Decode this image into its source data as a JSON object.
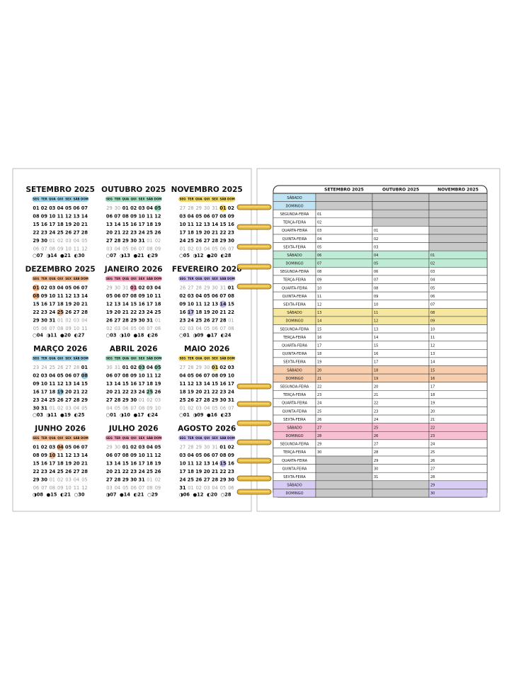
{
  "weekdays": [
    "SEG",
    "TER",
    "QUA",
    "QUI",
    "SEX",
    "SÁB",
    "DOM"
  ],
  "calendars": [
    {
      "title": "SETEMBRO 2025",
      "color": "#9fd3ea",
      "holidays": [],
      "weeks": [
        [
          "01",
          "02",
          "03",
          "04",
          "05",
          "06",
          "07"
        ],
        [
          "08",
          "09",
          "10",
          "11",
          "12",
          "13",
          "14"
        ],
        [
          "15",
          "16",
          "17",
          "18",
          "19",
          "20",
          "21"
        ],
        [
          "22",
          "23",
          "24",
          "25",
          "26",
          "27",
          "28"
        ],
        [
          "29",
          "30",
          "01",
          "02",
          "03",
          "04",
          "05"
        ],
        [
          "06",
          "07",
          "08",
          "09",
          "10",
          "11",
          "12"
        ]
      ],
      "moons": [
        "○07",
        "◑14",
        "●21",
        "◐30"
      ]
    },
    {
      "title": "OUTUBRO 2025",
      "color": "#a6dfc4",
      "holidays": [
        "05"
      ],
      "weeks": [
        [
          "29",
          "30",
          "01",
          "02",
          "03",
          "04",
          "05"
        ],
        [
          "06",
          "07",
          "08",
          "09",
          "10",
          "11",
          "12"
        ],
        [
          "13",
          "14",
          "15",
          "16",
          "17",
          "18",
          "19"
        ],
        [
          "20",
          "21",
          "22",
          "23",
          "24",
          "25",
          "26"
        ],
        [
          "27",
          "28",
          "29",
          "30",
          "31",
          "01",
          "02"
        ],
        [
          "03",
          "04",
          "05",
          "06",
          "07",
          "08",
          "09"
        ]
      ],
      "moons": [
        "○07",
        "◑13",
        "●21",
        "◐29"
      ]
    },
    {
      "title": "NOVEMBRO 2025",
      "color": "#f2da6a",
      "holidays": [
        "01"
      ],
      "weeks": [
        [
          "27",
          "28",
          "29",
          "30",
          "31",
          "01",
          "02"
        ],
        [
          "03",
          "04",
          "05",
          "06",
          "07",
          "08",
          "09"
        ],
        [
          "10",
          "11",
          "12",
          "13",
          "14",
          "15",
          "16"
        ],
        [
          "17",
          "18",
          "19",
          "20",
          "21",
          "22",
          "23"
        ],
        [
          "24",
          "25",
          "26",
          "27",
          "28",
          "29",
          "30"
        ],
        [
          "01",
          "02",
          "03",
          "04",
          "05",
          "06",
          "07"
        ]
      ],
      "moons": [
        "○05",
        "◑12",
        "●20",
        "◐28"
      ]
    },
    {
      "title": "DEZEMBRO 2025",
      "color": "#f3b98c",
      "holidays": [
        "01",
        "08",
        "25"
      ],
      "weeks": [
        [
          "01",
          "02",
          "03",
          "04",
          "05",
          "06",
          "07"
        ],
        [
          "08",
          "09",
          "10",
          "11",
          "12",
          "13",
          "14"
        ],
        [
          "15",
          "16",
          "17",
          "18",
          "19",
          "20",
          "21"
        ],
        [
          "22",
          "23",
          "24",
          "25",
          "26",
          "27",
          "28"
        ],
        [
          "29",
          "30",
          "31",
          "01",
          "02",
          "03",
          "04"
        ],
        [
          "05",
          "06",
          "07",
          "08",
          "09",
          "10",
          "11"
        ]
      ],
      "moons": [
        "○04",
        "◑11",
        "●20",
        "◐27"
      ]
    },
    {
      "title": "JANEIRO 2026",
      "color": "#f3a6bf",
      "holidays": [
        "01"
      ],
      "weeks": [
        [
          "29",
          "30",
          "31",
          "01",
          "02",
          "03",
          "04"
        ],
        [
          "05",
          "06",
          "07",
          "08",
          "09",
          "10",
          "11"
        ],
        [
          "12",
          "13",
          "14",
          "15",
          "16",
          "17",
          "18"
        ],
        [
          "19",
          "20",
          "21",
          "22",
          "23",
          "24",
          "25"
        ],
        [
          "26",
          "27",
          "28",
          "29",
          "30",
          "31",
          "01"
        ],
        [
          "02",
          "03",
          "04",
          "05",
          "06",
          "07",
          "08"
        ]
      ],
      "moons": [
        "○03",
        "◑10",
        "●18",
        "◐26"
      ]
    },
    {
      "title": "FEVEREIRO 2026",
      "color": "#c8b9f0",
      "holidays": [
        "14",
        "17"
      ],
      "weeks": [
        [
          "26",
          "27",
          "28",
          "29",
          "30",
          "31",
          "01"
        ],
        [
          "02",
          "03",
          "04",
          "05",
          "06",
          "07",
          "08"
        ],
        [
          "09",
          "10",
          "11",
          "12",
          "13",
          "14",
          "15"
        ],
        [
          "16",
          "17",
          "18",
          "19",
          "20",
          "21",
          "22"
        ],
        [
          "23",
          "24",
          "25",
          "26",
          "27",
          "28",
          "01"
        ],
        [
          "02",
          "03",
          "04",
          "05",
          "06",
          "07",
          "08"
        ]
      ],
      "moons": [
        "○01",
        "◑09",
        "●17",
        "◐24"
      ]
    },
    {
      "title": "MARÇO 2026",
      "color": "#9fd3ea",
      "holidays": [
        "08",
        "19"
      ],
      "weeks": [
        [
          "23",
          "24",
          "25",
          "26",
          "27",
          "28",
          "01"
        ],
        [
          "02",
          "03",
          "04",
          "05",
          "06",
          "07",
          "08"
        ],
        [
          "09",
          "10",
          "11",
          "12",
          "13",
          "14",
          "15"
        ],
        [
          "16",
          "17",
          "18",
          "19",
          "20",
          "21",
          "22"
        ],
        [
          "23",
          "24",
          "25",
          "26",
          "27",
          "28",
          "29"
        ],
        [
          "30",
          "31",
          "01",
          "02",
          "03",
          "04",
          "05"
        ]
      ],
      "moons": [
        "○03",
        "◑11",
        "●19",
        "◐25"
      ]
    },
    {
      "title": "ABRIL 2026",
      "color": "#a6dfc4",
      "holidays": [
        "03",
        "05",
        "25"
      ],
      "weeks": [
        [
          "30",
          "31",
          "01",
          "02",
          "03",
          "04",
          "05"
        ],
        [
          "06",
          "07",
          "08",
          "09",
          "10",
          "11",
          "12"
        ],
        [
          "13",
          "14",
          "15",
          "16",
          "17",
          "18",
          "19"
        ],
        [
          "20",
          "21",
          "22",
          "23",
          "24",
          "25",
          "26"
        ],
        [
          "27",
          "28",
          "29",
          "30",
          "01",
          "02",
          "03"
        ],
        [
          "04",
          "05",
          "06",
          "07",
          "08",
          "09",
          "10"
        ]
      ],
      "moons": [
        "○01",
        "◑10",
        "●17",
        "◐24"
      ]
    },
    {
      "title": "MAIO 2026",
      "color": "#f2da6a",
      "holidays": [
        "01"
      ],
      "weeks": [
        [
          "27",
          "28",
          "29",
          "30",
          "01",
          "02",
          "03"
        ],
        [
          "04",
          "05",
          "06",
          "07",
          "08",
          "09",
          "10"
        ],
        [
          "11",
          "12",
          "13",
          "14",
          "15",
          "16",
          "17"
        ],
        [
          "18",
          "19",
          "20",
          "21",
          "22",
          "23",
          "24"
        ],
        [
          "25",
          "26",
          "27",
          "28",
          "29",
          "30",
          "31"
        ],
        [
          "01",
          "02",
          "03",
          "04",
          "05",
          "06",
          "07"
        ]
      ],
      "moons": [
        "○01",
        "◑09",
        "●16",
        "◐23"
      ]
    },
    {
      "title": "JUNHO 2026",
      "color": "#f3b98c",
      "holidays": [
        "04",
        "10"
      ],
      "weeks": [
        [
          "01",
          "02",
          "03",
          "04",
          "05",
          "06",
          "07"
        ],
        [
          "08",
          "09",
          "10",
          "11",
          "12",
          "13",
          "14"
        ],
        [
          "15",
          "16",
          "17",
          "18",
          "19",
          "20",
          "21"
        ],
        [
          "22",
          "23",
          "24",
          "25",
          "26",
          "27",
          "28"
        ],
        [
          "29",
          "30",
          "01",
          "02",
          "03",
          "04",
          "05"
        ],
        [
          "06",
          "07",
          "08",
          "09",
          "10",
          "11",
          "12"
        ]
      ],
      "moons": [
        "◑08",
        "●15",
        "◐21",
        "○30"
      ]
    },
    {
      "title": "JULHO 2026",
      "color": "#f3a6bf",
      "holidays": [],
      "weeks": [
        [
          "29",
          "30",
          "01",
          "02",
          "03",
          "04",
          "05"
        ],
        [
          "06",
          "07",
          "08",
          "09",
          "10",
          "11",
          "12"
        ],
        [
          "13",
          "14",
          "15",
          "16",
          "17",
          "18",
          "19"
        ],
        [
          "20",
          "21",
          "22",
          "23",
          "24",
          "25",
          "26"
        ],
        [
          "27",
          "28",
          "29",
          "30",
          "31",
          "01",
          "02"
        ],
        [
          "03",
          "04",
          "05",
          "06",
          "07",
          "08",
          "09"
        ]
      ],
      "moons": [
        "◑07",
        "●14",
        "◐21",
        "○29"
      ]
    },
    {
      "title": "AGOSTO 2026",
      "color": "#c8b9f0",
      "holidays": [
        "15"
      ],
      "weeks": [
        [
          "27",
          "28",
          "29",
          "30",
          "31",
          "01",
          "02"
        ],
        [
          "03",
          "04",
          "05",
          "06",
          "07",
          "08",
          "09"
        ],
        [
          "10",
          "11",
          "12",
          "13",
          "14",
          "15",
          "16"
        ],
        [
          "17",
          "18",
          "19",
          "20",
          "21",
          "22",
          "23"
        ],
        [
          "24",
          "25",
          "26",
          "27",
          "28",
          "29",
          "30"
        ],
        [
          "31",
          "01",
          "02",
          "03",
          "04",
          "05",
          "06"
        ]
      ],
      "moons": [
        "◑06",
        "●12",
        "◐20",
        "○28"
      ]
    }
  ],
  "table": {
    "headers": [
      "SETEMBRO 2025",
      "OUTUBRO 2025",
      "NOVEMBRO 2025"
    ],
    "weekend_colors": [
      "#bfe3f2",
      "#bfebd6",
      "#f6e7a0",
      "#f8cfae",
      "#f6bfd2",
      "#d8ccf5"
    ],
    "rows": [
      [
        "SÁBADO",
        null,
        null,
        null
      ],
      [
        "DOMINGO",
        null,
        null,
        null
      ],
      [
        "SEGUNDA-FEIRA",
        "01",
        null,
        null
      ],
      [
        "TERÇA-FEIRA",
        "02",
        null,
        null
      ],
      [
        "QUARTA-FEIRA",
        "03",
        "01",
        null
      ],
      [
        "QUINTA-FEIRA",
        "04",
        "02",
        null
      ],
      [
        "SEXTA-FEIRA",
        "05",
        "03",
        null
      ],
      [
        "SÁBADO",
        "06",
        "04",
        "01"
      ],
      [
        "DOMINGO",
        "07",
        "05",
        "02"
      ],
      [
        "SEGUNDA-FEIRA",
        "08",
        "06",
        "03"
      ],
      [
        "TERÇA-FEIRA",
        "09",
        "07",
        "04"
      ],
      [
        "QUARTA-FEIRA",
        "10",
        "08",
        "05"
      ],
      [
        "QUINTA-FEIRA",
        "11",
        "09",
        "06"
      ],
      [
        "SEXTA-FEIRA",
        "12",
        "10",
        "07"
      ],
      [
        "SÁBADO",
        "13",
        "11",
        "08"
      ],
      [
        "DOMINGO",
        "14",
        "12",
        "09"
      ],
      [
        "SEGUNDA-FEIRA",
        "15",
        "13",
        "10"
      ],
      [
        "TERÇA-FEIRA",
        "16",
        "14",
        "11"
      ],
      [
        "QUARTA-FEIRA",
        "17",
        "15",
        "12"
      ],
      [
        "QUINTA-FEIRA",
        "18",
        "16",
        "13"
      ],
      [
        "SEXTA-FEIRA",
        "19",
        "17",
        "14"
      ],
      [
        "SÁBADO",
        "20",
        "18",
        "15"
      ],
      [
        "DOMINGO",
        "21",
        "19",
        "16"
      ],
      [
        "SEGUNDA-FEIRA",
        "22",
        "20",
        "17"
      ],
      [
        "TERÇA-FEIRA",
        "23",
        "21",
        "18"
      ],
      [
        "QUARTA-FEIRA",
        "24",
        "22",
        "19"
      ],
      [
        "QUINTA-FEIRA",
        "25",
        "23",
        "20"
      ],
      [
        "SEXTA-FEIRA",
        "26",
        "24",
        "21"
      ],
      [
        "SÁBADO",
        "27",
        "25",
        "22"
      ],
      [
        "DOMINGO",
        "28",
        "26",
        "23"
      ],
      [
        "SEGUNDA-FEIRA",
        "29",
        "27",
        "24"
      ],
      [
        "TERÇA-FEIRA",
        "30",
        "28",
        "25"
      ],
      [
        "QUARTA-FEIRA",
        null,
        "29",
        "26"
      ],
      [
        "QUINTA-FEIRA",
        null,
        "30",
        "27"
      ],
      [
        "SEXTA-FEIRA",
        null,
        "31",
        "28"
      ],
      [
        "SÁBADO",
        null,
        null,
        "29"
      ],
      [
        "DOMINGO",
        null,
        null,
        "30"
      ]
    ]
  }
}
